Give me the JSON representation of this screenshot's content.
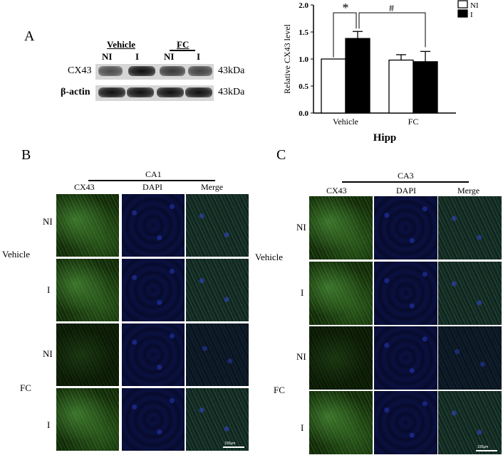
{
  "panel_a": {
    "letter": "A",
    "western_blot": {
      "groups": [
        "Vehicle",
        "FC"
      ],
      "lanes": [
        "NI",
        "I",
        "NI",
        "I"
      ],
      "rows": [
        {
          "name": "CX43",
          "size": "43kDa"
        },
        {
          "name": "β-actin",
          "size": "43kDa"
        }
      ]
    },
    "legend": [
      "NI",
      "I"
    ]
  },
  "chart_data": {
    "type": "bar",
    "categories": [
      "Vehicle",
      "FC"
    ],
    "series": [
      {
        "name": "NI",
        "values": [
          1.0,
          0.98
        ],
        "errors": [
          0.0,
          0.1
        ],
        "color": "#ffffff"
      },
      {
        "name": "I",
        "values": [
          1.38,
          0.95
        ],
        "errors": [
          0.13,
          0.19
        ],
        "color": "#000000"
      }
    ],
    "ylabel": "Relative CX43 level",
    "xlabel": "Hipp",
    "ylim": [
      0,
      2.0
    ],
    "yticks": [
      "0.0",
      "0.5",
      "1.0",
      "1.5",
      "2.0"
    ],
    "annotations": [
      "*",
      "#"
    ],
    "legend_position": "top-right",
    "grid": false
  },
  "panel_b": {
    "letter": "B",
    "region": "CA1",
    "columns": [
      "CX43",
      "DAPI",
      "Merge"
    ],
    "groups": [
      "Vehicle",
      "FC"
    ],
    "rows": [
      "NI",
      "I",
      "NI",
      "I"
    ],
    "scale_label": "100μm"
  },
  "panel_c": {
    "letter": "C",
    "region": "CA3",
    "columns": [
      "CX43",
      "DAPI",
      "Merge"
    ],
    "groups": [
      "Vehicle",
      "FC"
    ],
    "rows": [
      "NI",
      "I",
      "NI",
      "I"
    ],
    "scale_label": "100μm"
  }
}
